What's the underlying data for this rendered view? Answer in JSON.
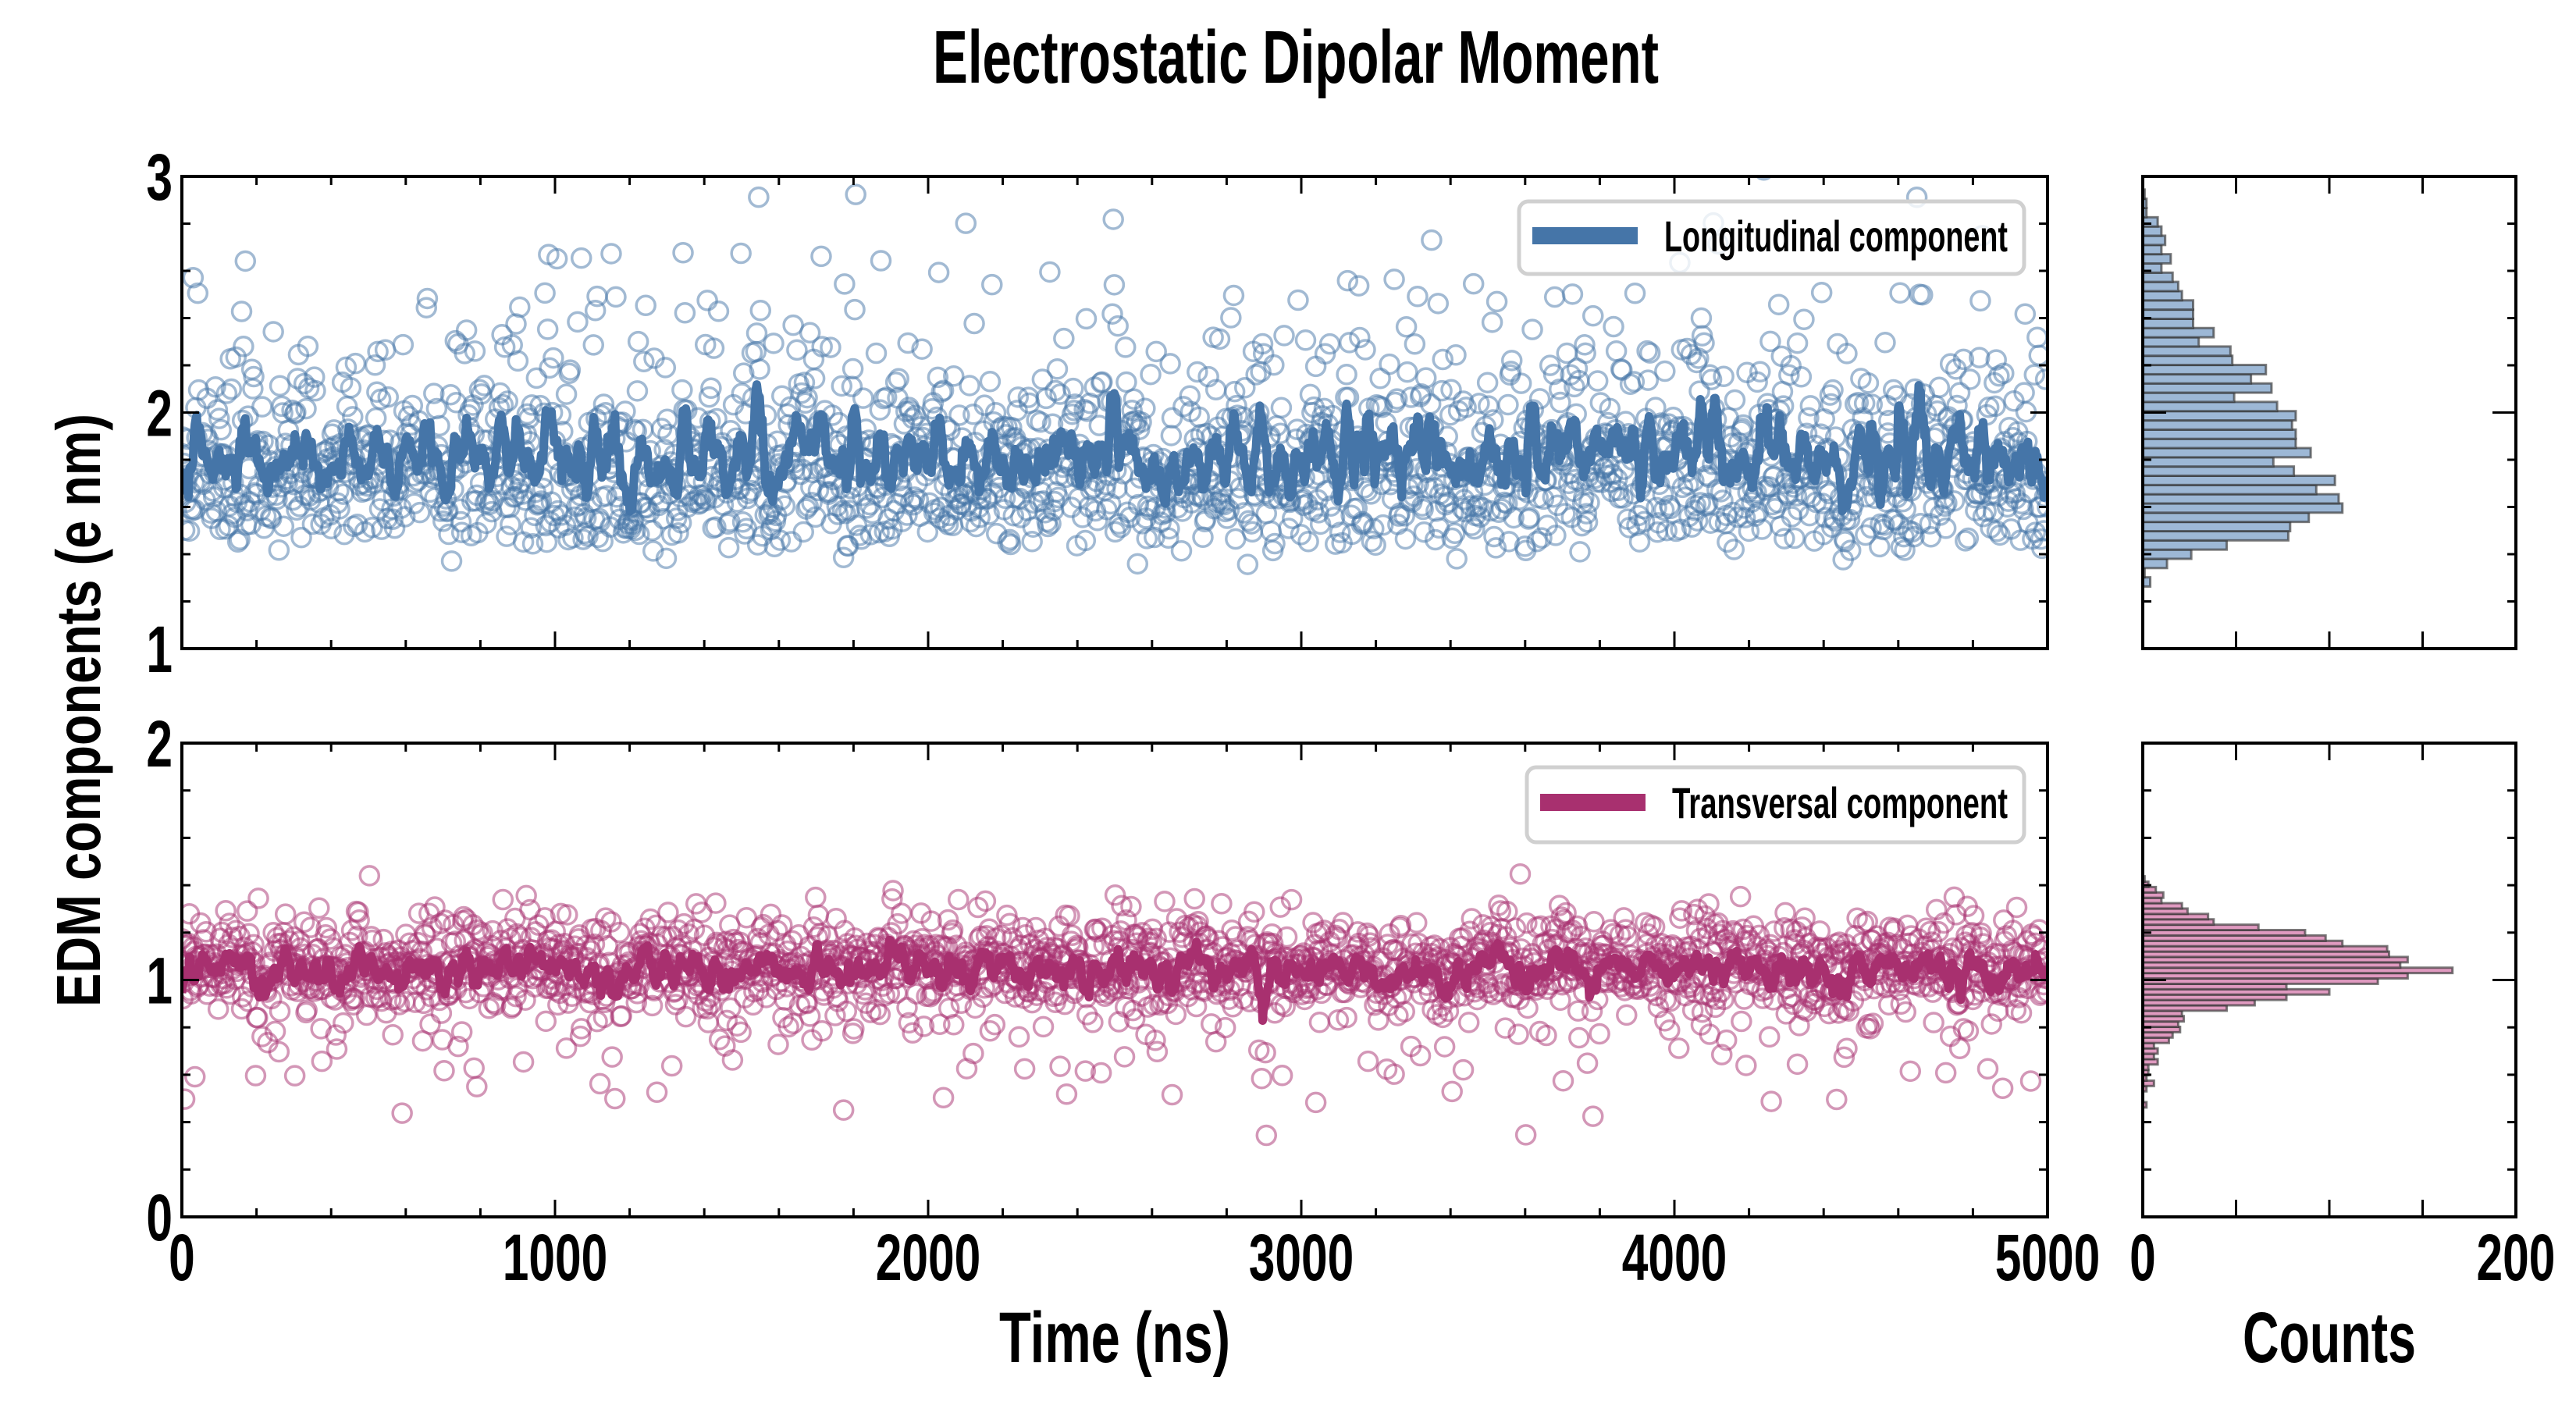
{
  "title": "Electrostatic Dipolar Moment",
  "ylabel": "EDM components (e nm)",
  "xlabel": "Time (ns)",
  "hist_xlabel": "Counts",
  "x_tick_labels": [
    "0",
    "1000",
    "2000",
    "3000",
    "4000",
    "5000"
  ],
  "hist_x_tick_labels": [
    "0",
    "200"
  ],
  "top_y_tick_labels": [
    "3",
    "2",
    "1"
  ],
  "bottom_y_tick_labels": [
    "2",
    "1",
    "0"
  ],
  "legend": {
    "top": "Longitudinal component",
    "bottom": "Transversal component"
  },
  "colors": {
    "longitudinal": "#4575a8",
    "longitudinal_fill": "#9db8d6",
    "transversal": "#a8306f",
    "transversal_fill": "#e09ac0"
  },
  "chart_data": [
    {
      "type": "scatter",
      "panel": "top",
      "title": "Electrostatic Dipolar Moment",
      "series": [
        {
          "name": "Longitudinal component",
          "kind": "scatter+running-mean-line"
        }
      ],
      "xlabel": "Time (ns)",
      "ylabel": "EDM components (e nm)",
      "xlim": [
        0,
        5000
      ],
      "ylim": [
        1,
        3
      ],
      "xticks_major": [
        0,
        1000,
        2000,
        3000,
        4000,
        5000
      ],
      "xtick_minor_step": 200,
      "yticks_major": [
        1,
        2,
        3
      ],
      "ytick_minor_step": 0.2,
      "legend_position": "top-right",
      "samples": {
        "n": 2000,
        "x_start": 0,
        "x_end": 5000,
        "baseline": 1.25,
        "median_offset": 0.5,
        "log_sigma": 0.45,
        "running_mean_window": 9,
        "seed": 17
      }
    },
    {
      "type": "scatter",
      "panel": "bottom",
      "series": [
        {
          "name": "Transversal component",
          "kind": "scatter+running-mean-line"
        }
      ],
      "xlabel": "Time (ns)",
      "xlim": [
        0,
        5000
      ],
      "ylim": [
        0,
        2
      ],
      "xticks_major": [
        0,
        1000,
        2000,
        3000,
        4000,
        5000
      ],
      "xtick_minor_step": 200,
      "yticks_major": [
        0,
        1,
        2
      ],
      "ytick_minor_step": 0.2,
      "legend_position": "top-right",
      "samples": {
        "n": 2000,
        "x_start": 0,
        "x_end": 5000,
        "mean": 1.06,
        "sigma": 0.11,
        "low_tail_prob": 0.06,
        "running_mean_window": 9,
        "seed": 29
      }
    },
    {
      "type": "bar",
      "orientation": "horizontal",
      "panel": "top-histogram",
      "xlabel": "Counts",
      "xlim": [
        0,
        200
      ],
      "ylim": [
        1,
        3
      ],
      "xticks_major": [
        0,
        50,
        100,
        150,
        200
      ],
      "bin_start": 1.263,
      "bin_width": 0.0391,
      "counts": [
        4,
        1,
        13,
        26,
        45,
        78,
        79,
        89,
        107,
        105,
        93,
        103,
        81,
        70,
        90,
        82,
        82,
        80,
        82,
        72,
        49,
        69,
        58,
        66,
        48,
        47,
        30,
        38,
        27,
        27,
        27,
        21,
        19,
        16,
        10,
        15,
        10,
        12,
        10,
        8,
        2,
        2,
        1
      ]
    },
    {
      "type": "bar",
      "orientation": "horizontal",
      "panel": "bottom-histogram",
      "xlabel": "Counts",
      "xlim": [
        0,
        200
      ],
      "ylim": [
        0,
        2
      ],
      "xticks_major": [
        0,
        50,
        100,
        150,
        200
      ],
      "bin_start": 0.4617,
      "bin_width": 0.0227,
      "counts": [
        2,
        0,
        0,
        2,
        6,
        2,
        3,
        3,
        8,
        6,
        8,
        6,
        14,
        16,
        20,
        19,
        22,
        21,
        45,
        60,
        77,
        100,
        77,
        126,
        142,
        166,
        138,
        142,
        132,
        131,
        107,
        98,
        87,
        62,
        38,
        35,
        24,
        21,
        10,
        11,
        7,
        3,
        1
      ]
    }
  ]
}
